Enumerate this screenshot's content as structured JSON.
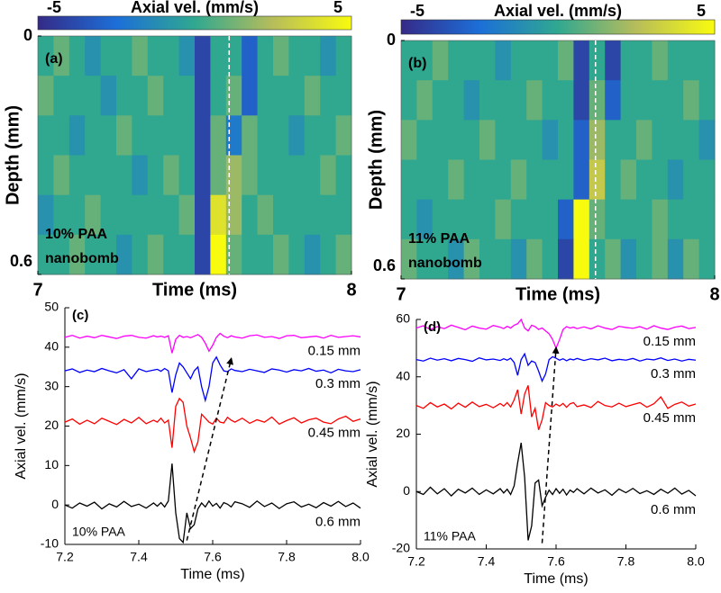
{
  "chart_data": [
    {
      "type": "heatmap",
      "panel_label": "(a)",
      "sample": "10% PAA",
      "agent": "nanobomb",
      "colorbar_title": "Axial vel. (mm/s)",
      "clim": [
        -5,
        5
      ],
      "cticks": [
        -5,
        5
      ],
      "colormap": [
        "#352a87",
        "#1c6fd8",
        "#30a890",
        "#b7bd5a",
        "#f9fb0e"
      ],
      "xlabel": "Time (ms)",
      "ylabel": "Depth (mm)",
      "xlim": [
        7,
        8
      ],
      "xticks": [
        7,
        8
      ],
      "ylim": [
        0,
        0.6
      ],
      "yticks": [
        0,
        0.6
      ],
      "y_inverted": true,
      "x": [
        7.025,
        7.075,
        7.125,
        7.175,
        7.225,
        7.275,
        7.325,
        7.375,
        7.425,
        7.475,
        7.525,
        7.575,
        7.625,
        7.675,
        7.725,
        7.775,
        7.825,
        7.875,
        7.925,
        7.975
      ],
      "y": [
        0.05,
        0.15,
        0.25,
        0.35,
        0.45,
        0.55
      ],
      "values": [
        [
          0,
          1,
          0,
          -1,
          0,
          0,
          1,
          0,
          0,
          -1,
          -4,
          0,
          0,
          -3,
          0,
          1,
          0,
          0,
          -1,
          0
        ],
        [
          1,
          0,
          0,
          0,
          -1,
          0,
          0,
          1,
          0,
          0,
          -4,
          0,
          1,
          -3,
          0,
          0,
          0,
          1,
          0,
          0
        ],
        [
          0,
          0,
          -1,
          0,
          0,
          1,
          0,
          0,
          0,
          0,
          -4,
          1,
          -2,
          1,
          0,
          0,
          -1,
          0,
          0,
          1
        ],
        [
          0,
          1,
          0,
          0,
          0,
          0,
          -1,
          0,
          1,
          0,
          -4,
          1,
          2,
          1,
          0,
          0,
          0,
          0,
          1,
          0
        ],
        [
          -1,
          0,
          0,
          1,
          0,
          0,
          0,
          0,
          0,
          1,
          -4,
          4,
          2,
          0,
          1,
          0,
          0,
          0,
          0,
          0
        ],
        [
          0,
          0,
          1,
          0,
          0,
          -1,
          0,
          1,
          0,
          0,
          -4,
          5,
          1,
          0,
          0,
          1,
          0,
          -1,
          0,
          1
        ]
      ],
      "vline": 7.61
    },
    {
      "type": "heatmap",
      "panel_label": "(b)",
      "sample": "11% PAA",
      "agent": "nanobomb",
      "colorbar_title": "Axial vel. (mm/s)",
      "clim": [
        -5,
        5
      ],
      "cticks": [
        -5,
        5
      ],
      "colormap": [
        "#352a87",
        "#1c6fd8",
        "#30a890",
        "#b7bd5a",
        "#f9fb0e"
      ],
      "xlabel": "Time (ms)",
      "ylabel": "Depth (mm)",
      "xlim": [
        7,
        8
      ],
      "xticks": [
        7,
        8
      ],
      "ylim": [
        0,
        0.6
      ],
      "yticks": [
        0,
        0.6
      ],
      "y_inverted": true,
      "x": [
        7.025,
        7.075,
        7.125,
        7.175,
        7.225,
        7.275,
        7.325,
        7.375,
        7.425,
        7.475,
        7.525,
        7.575,
        7.625,
        7.675,
        7.725,
        7.775,
        7.825,
        7.875,
        7.925,
        7.975
      ],
      "y": [
        0.05,
        0.15,
        0.25,
        0.35,
        0.45,
        0.55
      ],
      "values": [
        [
          0,
          0,
          1,
          0,
          0,
          0,
          -1,
          0,
          0,
          0,
          1,
          -4,
          0,
          -4,
          0,
          0,
          1,
          0,
          0,
          0
        ],
        [
          0,
          1,
          0,
          0,
          -1,
          0,
          0,
          0,
          1,
          0,
          0,
          -4,
          1,
          -3,
          0,
          0,
          0,
          0,
          1,
          0
        ],
        [
          1,
          0,
          0,
          0,
          0,
          1,
          0,
          0,
          0,
          -1,
          0,
          -3,
          2,
          0,
          0,
          1,
          0,
          0,
          0,
          -1
        ],
        [
          0,
          0,
          0,
          1,
          0,
          0,
          0,
          1,
          0,
          0,
          0,
          -3,
          3,
          0,
          1,
          0,
          0,
          -1,
          0,
          0
        ],
        [
          0,
          -1,
          0,
          0,
          0,
          0,
          1,
          0,
          0,
          0,
          -3,
          5,
          1,
          0,
          0,
          0,
          1,
          0,
          0,
          0
        ],
        [
          1,
          0,
          0,
          -1,
          1,
          0,
          0,
          -1,
          1,
          0,
          -4,
          5,
          0,
          1,
          -1,
          0,
          1,
          -1,
          1,
          0
        ]
      ],
      "vline": 7.62
    },
    {
      "type": "line",
      "panel_label": "(c)",
      "sample": "10% PAA",
      "xlabel": "Time (ms)",
      "ylabel": "Axial vel. (mm/s)",
      "xlim": [
        7.2,
        8
      ],
      "xticks": [
        7.2,
        7.4,
        7.6,
        7.8,
        {
          "value": 8,
          "label": "8.0"
        }
      ],
      "ylim": [
        -10,
        50
      ],
      "yticks": [
        -10,
        0,
        10,
        20,
        30,
        40,
        50
      ],
      "x": [
        7.2,
        7.22,
        7.24,
        7.26,
        7.28,
        7.3,
        7.32,
        7.34,
        7.36,
        7.38,
        7.4,
        7.42,
        7.44,
        7.45,
        7.46,
        7.47,
        7.48,
        7.49,
        7.5,
        7.51,
        7.52,
        7.53,
        7.54,
        7.55,
        7.56,
        7.57,
        7.58,
        7.59,
        7.6,
        7.61,
        7.62,
        7.63,
        7.64,
        7.65,
        7.66,
        7.68,
        7.7,
        7.72,
        7.74,
        7.76,
        7.78,
        7.8,
        7.82,
        7.84,
        7.86,
        7.88,
        7.9,
        7.92,
        7.94,
        7.96,
        7.98,
        8.0
      ],
      "series": [
        {
          "name": "0.15 mm",
          "color": "#ff00ff",
          "values": [
            42.5,
            43,
            42.3,
            42.8,
            42.4,
            43,
            42.6,
            42.2,
            42.8,
            43,
            42.5,
            42.3,
            42.9,
            42.6,
            42.8,
            42.5,
            42.9,
            38.5,
            42,
            43,
            42.5,
            42.7,
            42.4,
            42.8,
            43.2,
            42.5,
            41,
            39,
            40.5,
            42.5,
            43.5,
            42.8,
            42.4,
            42.9,
            42.6,
            42.3,
            42.9,
            43.1,
            42.5,
            42.7,
            42.2,
            42.9,
            43,
            42.4,
            42.6,
            42.8,
            42.3,
            43,
            42.5,
            42.7,
            42.9,
            42.6
          ]
        },
        {
          "name": "0.3 mm",
          "color": "#0000ff",
          "values": [
            34,
            34.5,
            33.6,
            34.2,
            33.8,
            34.6,
            34,
            33.5,
            34.3,
            32,
            34.5,
            33.8,
            34.2,
            34.4,
            33.9,
            34.6,
            34,
            28.5,
            33,
            36,
            35,
            33.5,
            32,
            34,
            35,
            30,
            26.5,
            30,
            36,
            37.5,
            35.5,
            34,
            33.8,
            34.5,
            34.1,
            33.8,
            34.4,
            34,
            33.6,
            34.5,
            34.2,
            33.7,
            34.3,
            34,
            34.6,
            33.9,
            34.2,
            33.5,
            34.4,
            34,
            33.8,
            34.3
          ]
        },
        {
          "name": "0.45 mm",
          "color": "#ff0000",
          "values": [
            21,
            21.8,
            20.5,
            21.5,
            20.6,
            22,
            21.2,
            20.4,
            21.7,
            20.8,
            22.2,
            20.6,
            21.5,
            21,
            22,
            20.8,
            21.5,
            14.5,
            25,
            27,
            26,
            20,
            17,
            13.5,
            16,
            23,
            22,
            21,
            20.5,
            22,
            21,
            20.8,
            22.2,
            21.5,
            21,
            22,
            20.7,
            21.6,
            21,
            22.3,
            20.5,
            21.4,
            22.1,
            20.8,
            21.6,
            22,
            21,
            20.6,
            21.8,
            22.5,
            21.2,
            21.8
          ]
        },
        {
          "name": "0.6 mm",
          "color": "#000000",
          "values": [
            0,
            -0.8,
            0.5,
            -0.3,
            0.7,
            -1,
            0.3,
            -0.5,
            0.9,
            -0.4,
            0.2,
            -0.8,
            0.5,
            -0.3,
            0.6,
            -0.5,
            1,
            10.5,
            -2,
            -8.5,
            -9.5,
            -2,
            -6,
            -5,
            -1,
            0.5,
            -0.5,
            1,
            -0.3,
            0.4,
            -0.8,
            0.6,
            0.2,
            -0.5,
            0.8,
            0.3,
            -0.6,
            1,
            -0.4,
            0.5,
            -0.9,
            0.3,
            0.8,
            -0.5,
            0.2,
            -0.7,
            0.6,
            -0.3,
            0.9,
            -0.4,
            0.5,
            -0.8
          ]
        }
      ],
      "arrow": {
        "x": [
          7.53,
          7.65
        ],
        "y": [
          -9,
          37
        ]
      }
    },
    {
      "type": "line",
      "panel_label": "(d)",
      "sample": "11% PAA",
      "xlabel": "Time (ms)",
      "ylabel": "Axial vel. (mm/s)",
      "xlim": [
        7.2,
        8
      ],
      "xticks": [
        7.2,
        7.4,
        7.6,
        7.8,
        {
          "value": 8,
          "label": "8.0"
        }
      ],
      "ylim": [
        -20,
        60
      ],
      "yticks": [
        -20,
        0,
        20,
        40,
        60
      ],
      "x": [
        7.2,
        7.22,
        7.24,
        7.26,
        7.28,
        7.3,
        7.32,
        7.34,
        7.36,
        7.38,
        7.4,
        7.42,
        7.44,
        7.45,
        7.46,
        7.47,
        7.48,
        7.49,
        7.5,
        7.51,
        7.52,
        7.53,
        7.54,
        7.55,
        7.56,
        7.57,
        7.58,
        7.59,
        7.6,
        7.61,
        7.62,
        7.63,
        7.64,
        7.65,
        7.66,
        7.68,
        7.7,
        7.72,
        7.74,
        7.76,
        7.78,
        7.8,
        7.82,
        7.84,
        7.86,
        7.88,
        7.9,
        7.92,
        7.94,
        7.96,
        7.98,
        8.0
      ],
      "series": [
        {
          "name": "0.15 mm",
          "color": "#ff00ff",
          "values": [
            57,
            57.8,
            56.5,
            57.5,
            56.8,
            58,
            57.2,
            56.4,
            57.7,
            57,
            56.6,
            57.9,
            57.3,
            56.8,
            57.6,
            57,
            58,
            58.5,
            60,
            57,
            56,
            58,
            57.5,
            56.5,
            57,
            56,
            55,
            53,
            50,
            53,
            56.5,
            57.5,
            57,
            57.3,
            56.8,
            57.4,
            56.7,
            57.8,
            57,
            56.5,
            57.6,
            57.2,
            56.9,
            57.5,
            56.6,
            57.8,
            57,
            56.5,
            57.3,
            57.7,
            56.8,
            57.2
          ]
        },
        {
          "name": "0.3 mm",
          "color": "#0000ff",
          "values": [
            46,
            45.5,
            46.5,
            45.8,
            46.3,
            45.6,
            46.4,
            46,
            45.4,
            46.6,
            45.9,
            46.2,
            45.7,
            46.3,
            45.8,
            46.5,
            45,
            40.5,
            46,
            48,
            44,
            45.5,
            45,
            42,
            38.5,
            41,
            46,
            47,
            46.5,
            45.8,
            46.3,
            45.6,
            46.2,
            45.9,
            46.4,
            45.7,
            46.3,
            45.9,
            46.5,
            45.6,
            46.1,
            45.8,
            46.4,
            45.5,
            46.2,
            45.9,
            46.6,
            45.7,
            46.2,
            45.5,
            46.1,
            45.8
          ]
        },
        {
          "name": "0.45 mm",
          "color": "#ff0000",
          "values": [
            30,
            29,
            31,
            29.5,
            30.5,
            28.8,
            30.8,
            29.4,
            31.2,
            29.6,
            30.4,
            29.2,
            30.7,
            29.8,
            31,
            29.5,
            32,
            35.5,
            27,
            34,
            37,
            26,
            29,
            21.5,
            25,
            31,
            30,
            29.5,
            30.5,
            29.8,
            30.7,
            29.4,
            30.6,
            31,
            29.6,
            30.2,
            29.3,
            31.4,
            30,
            29.5,
            30.8,
            29.6,
            30.3,
            31,
            29.4,
            30.6,
            33,
            29,
            30.4,
            31.2,
            29.8,
            30.5
          ]
        },
        {
          "name": "0.6 mm",
          "color": "#000000",
          "values": [
            0,
            -1,
            1.5,
            -0.8,
            1,
            -1.5,
            0.8,
            -0.5,
            1.2,
            -1,
            0.6,
            -0.8,
            1,
            -0.5,
            0.8,
            -1,
            2,
            10,
            17,
            5,
            -17,
            -12,
            3,
            4,
            -5,
            -2,
            0.5,
            -1,
            1,
            -0.6,
            0.8,
            -1.2,
            0.5,
            -0.3,
            1,
            -0.8,
            1.2,
            -0.5,
            0.6,
            -1.3,
            0.9,
            -0.4,
            1.1,
            -0.7,
            0.3,
            -1,
            0.8,
            -0.6,
            1.2,
            -0.9,
            0.4,
            -1.5
          ]
        }
      ],
      "arrow": {
        "x": [
          7.56,
          7.6
        ],
        "y": [
          -18,
          50
        ]
      }
    }
  ]
}
